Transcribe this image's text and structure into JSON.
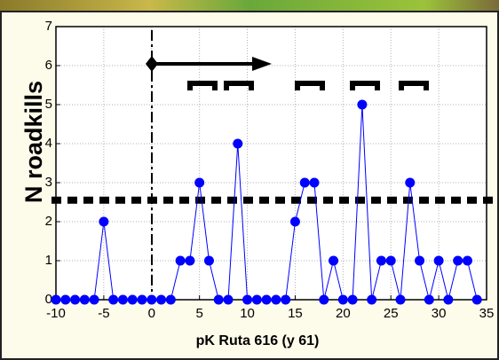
{
  "chart_data": {
    "type": "line",
    "x_label": "pK Ruta 616 (y 61)",
    "y_label": "N roadkills",
    "x": [
      -10,
      -9,
      -8,
      -7,
      -6,
      -5,
      -4,
      -3,
      -2,
      -1,
      0,
      1,
      2,
      3,
      4,
      5,
      6,
      7,
      8,
      9,
      10,
      11,
      12,
      13,
      14,
      15,
      16,
      17,
      18,
      19,
      20,
      21,
      22,
      23,
      24,
      25,
      26,
      27,
      28,
      29,
      30,
      31,
      32,
      33,
      34
    ],
    "series": [
      {
        "color": "#0000ff",
        "values": [
          0,
          0,
          0,
          0,
          0,
          2,
          0,
          0,
          0,
          0,
          0,
          0,
          0,
          1,
          1,
          3,
          1,
          0,
          0,
          4,
          0,
          0,
          0,
          0,
          0,
          2,
          3,
          3,
          0,
          1,
          0,
          0,
          5,
          0,
          1,
          1,
          0,
          3,
          1,
          0,
          1,
          0,
          1,
          1,
          0
        ]
      }
    ],
    "reference_line": 2.55,
    "xlim": [
      -10,
      35
    ],
    "xticks": [
      -10,
      -5,
      0,
      5,
      10,
      15,
      20,
      25,
      30,
      35
    ],
    "ylim": [
      0,
      7
    ],
    "yticks": [
      0,
      1,
      2,
      3,
      4,
      5,
      6,
      7
    ],
    "grid": true
  }
}
